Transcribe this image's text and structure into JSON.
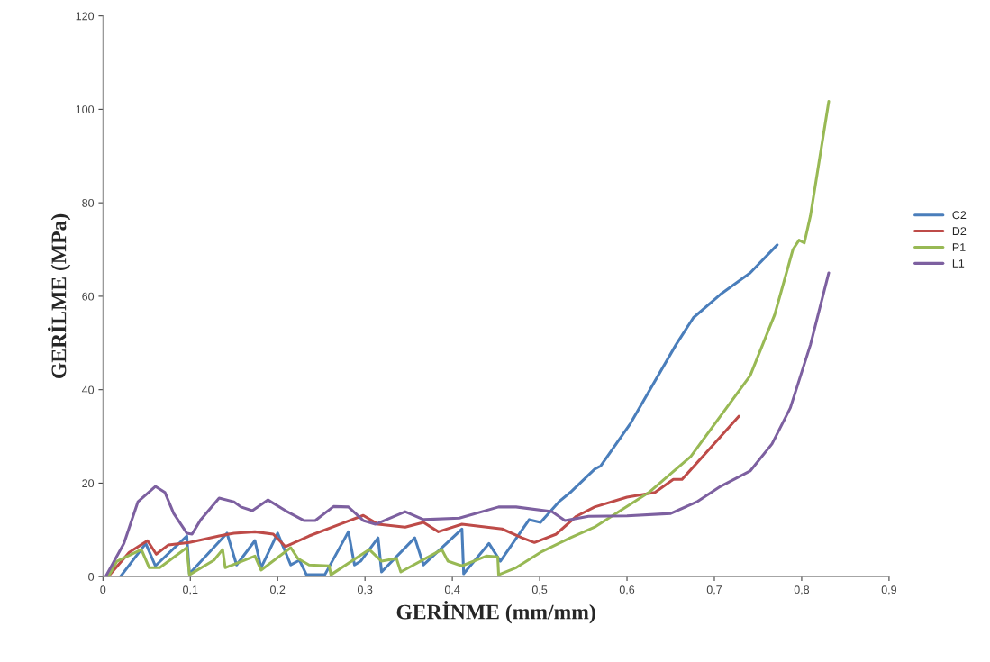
{
  "chart_data": {
    "type": "line",
    "xlabel": "GERİNME (mm/mm)",
    "ylabel": "GERİLME (MPa)",
    "xlim": [
      0,
      0.9
    ],
    "xticks": [
      0,
      {
        "value": 0.1,
        "label": "0,1"
      },
      {
        "value": 0.2,
        "label": "0,2"
      },
      {
        "value": 0.3,
        "label": "0,3"
      },
      {
        "value": 0.4,
        "label": "0,4"
      },
      {
        "value": 0.5,
        "label": "0,5"
      },
      {
        "value": 0.6,
        "label": "0,6"
      },
      {
        "value": 0.7,
        "label": "0,7"
      },
      {
        "value": 0.8,
        "label": "0,8"
      },
      {
        "value": 0.9,
        "label": "0,9"
      }
    ],
    "ylim": [
      0,
      120
    ],
    "yticks": [
      0,
      20,
      40,
      60,
      80,
      100,
      120
    ],
    "grid": false,
    "legend": "right",
    "marker": "none",
    "line_style": "solid",
    "series": [
      {
        "name": "C2",
        "color": "#4a7ebb",
        "x": [
          0.02,
          0.049,
          0.06,
          0.096,
          0.099,
          0.142,
          0.153,
          0.174,
          0.181,
          0.2,
          0.215,
          0.225,
          0.233,
          0.254,
          0.281,
          0.288,
          0.295,
          0.315,
          0.319,
          0.357,
          0.367,
          0.411,
          0.413,
          0.442,
          0.455,
          0.488,
          0.501,
          0.522,
          0.535,
          0.563,
          0.57,
          0.604,
          0.656,
          0.676,
          0.707,
          0.741,
          0.772
        ],
        "values": [
          0,
          7.1,
          2.3,
          8.7,
          0.6,
          9.3,
          2.5,
          7.7,
          1.9,
          9.3,
          2.5,
          3.5,
          0.4,
          0.4,
          9.6,
          2.5,
          3.3,
          8.3,
          1,
          8.3,
          2.5,
          10.2,
          0.6,
          7.1,
          3.3,
          12.2,
          11.6,
          16,
          18,
          23,
          23.7,
          32.8,
          49.6,
          55.4,
          60.4,
          65,
          71
        ]
      },
      {
        "name": "D2",
        "color": "#be4b48",
        "x": [
          0.006,
          0.03,
          0.051,
          0.061,
          0.075,
          0.099,
          0.133,
          0.15,
          0.174,
          0.195,
          0.209,
          0.236,
          0.271,
          0.298,
          0.315,
          0.346,
          0.367,
          0.384,
          0.411,
          0.457,
          0.48,
          0.494,
          0.519,
          0.542,
          0.563,
          0.6,
          0.632,
          0.653,
          0.663,
          0.69,
          0.728
        ],
        "values": [
          0,
          5.2,
          7.7,
          4.8,
          6.8,
          7.3,
          8.7,
          9.3,
          9.6,
          9.1,
          6.4,
          8.7,
          11.2,
          13.1,
          11.2,
          10.6,
          11.6,
          9.6,
          11.2,
          10.2,
          8.3,
          7.3,
          9.1,
          12.9,
          14.9,
          17,
          18,
          20.8,
          20.8,
          26.4,
          34.3
        ]
      },
      {
        "name": "P1",
        "color": "#98b954",
        "x": [
          0.006,
          0.016,
          0.044,
          0.053,
          0.065,
          0.096,
          0.099,
          0.127,
          0.137,
          0.14,
          0.174,
          0.181,
          0.215,
          0.223,
          0.236,
          0.259,
          0.261,
          0.305,
          0.319,
          0.336,
          0.341,
          0.388,
          0.395,
          0.411,
          0.439,
          0.452,
          0.453,
          0.473,
          0.501,
          0.535,
          0.563,
          0.625,
          0.673,
          0.741,
          0.769,
          0.79,
          0.797,
          0.803,
          0.81,
          0.831
        ],
        "values": [
          0,
          3.3,
          5.8,
          1.9,
          1.9,
          6.2,
          0.4,
          3.5,
          5.8,
          1.9,
          4.4,
          1.4,
          6.2,
          3.9,
          2.5,
          2.3,
          0.4,
          5.8,
          3.3,
          3.9,
          1,
          5.8,
          3.3,
          2.3,
          4.4,
          4.2,
          0.4,
          1.9,
          5.2,
          8.3,
          10.6,
          18,
          25.7,
          43,
          56,
          70,
          72,
          71.4,
          77.2,
          101.7
        ]
      },
      {
        "name": "L1",
        "color": "#7d60a0",
        "x": [
          0.003,
          0.024,
          0.04,
          0.06,
          0.071,
          0.081,
          0.096,
          0.102,
          0.112,
          0.133,
          0.15,
          0.158,
          0.171,
          0.189,
          0.209,
          0.23,
          0.243,
          0.264,
          0.281,
          0.298,
          0.312,
          0.346,
          0.367,
          0.408,
          0.453,
          0.473,
          0.514,
          0.529,
          0.556,
          0.6,
          0.65,
          0.68,
          0.707,
          0.741,
          0.766,
          0.787,
          0.81,
          0.831
        ],
        "values": [
          0,
          7.1,
          16,
          19.3,
          18,
          13.5,
          9.3,
          9.1,
          12.2,
          16.8,
          16,
          14.9,
          14.1,
          16.4,
          14.1,
          12,
          12,
          15,
          14.9,
          12,
          11.2,
          13.9,
          12.2,
          12.5,
          14.9,
          14.9,
          13.9,
          12,
          12.9,
          13,
          13.5,
          16,
          19.3,
          22.6,
          28.4,
          36.1,
          49.6,
          65
        ]
      }
    ]
  }
}
